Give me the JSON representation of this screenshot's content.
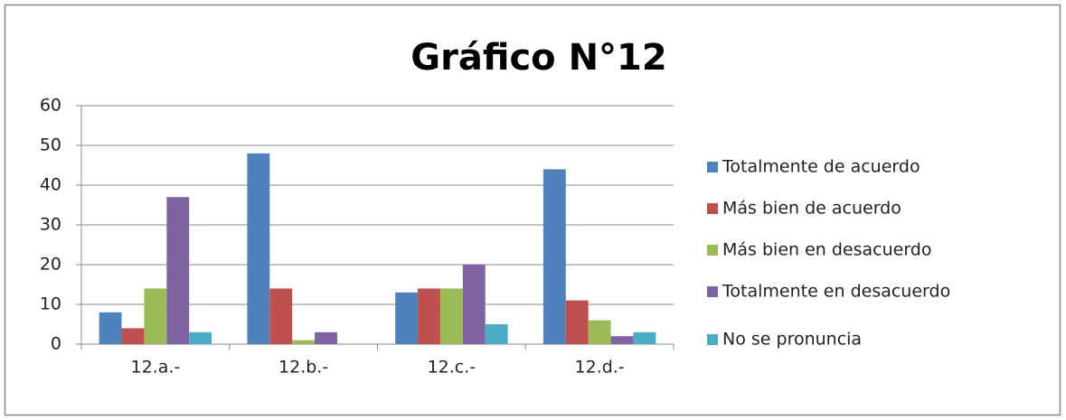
{
  "chart_data": {
    "type": "bar",
    "title": "Gráfico N°12",
    "categories": [
      "12.a.-",
      "12.b.-",
      "12.c.-",
      "12.d.-"
    ],
    "series": [
      {
        "name": "Totalmente de acuerdo",
        "color": "#4f81bd",
        "values": [
          8,
          48,
          13,
          44
        ]
      },
      {
        "name": "Más bien de acuerdo",
        "color": "#c0504d",
        "values": [
          4,
          14,
          14,
          11
        ]
      },
      {
        "name": "Más bien en desacuerdo",
        "color": "#9bbb59",
        "values": [
          14,
          1,
          14,
          6
        ]
      },
      {
        "name": "Totalmente en desacuerdo",
        "color": "#8064a2",
        "values": [
          37,
          3,
          20,
          2
        ]
      },
      {
        "name": "No se pronuncia",
        "color": "#4bacc6",
        "values": [
          3,
          0,
          5,
          3
        ]
      }
    ],
    "ylim": [
      0,
      60
    ],
    "yticks": [
      0,
      10,
      20,
      30,
      40,
      50,
      60
    ],
    "grid": true,
    "legend": "right"
  }
}
